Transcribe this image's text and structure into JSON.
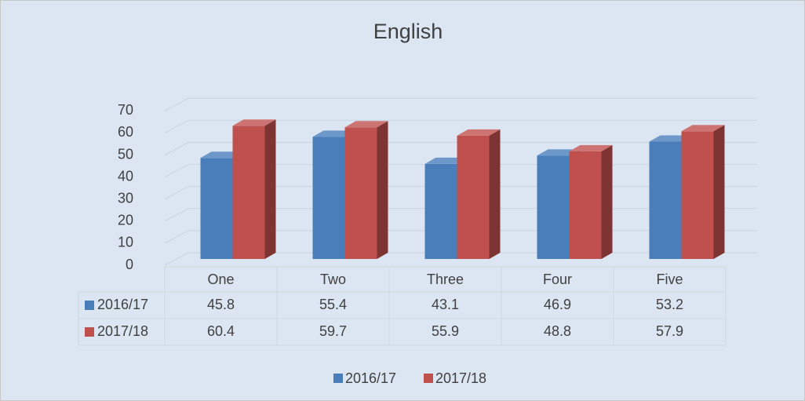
{
  "chart_data": {
    "type": "bar3d",
    "title": "English",
    "categories": [
      "One",
      "Two",
      "Three",
      "Four",
      "Five"
    ],
    "series": [
      {
        "name": "2016/17",
        "color": "#4a7ebb",
        "values": [
          45.8,
          55.4,
          43.1,
          46.9,
          53.2
        ]
      },
      {
        "name": "2017/18",
        "color": "#c0504d",
        "values": [
          60.4,
          59.7,
          55.9,
          48.8,
          57.9
        ]
      }
    ],
    "ylim": [
      0,
      70
    ],
    "yticks": [
      0,
      10,
      20,
      30,
      40,
      50,
      60,
      70
    ],
    "grid": true,
    "data_table": true,
    "legend": "bottom"
  }
}
